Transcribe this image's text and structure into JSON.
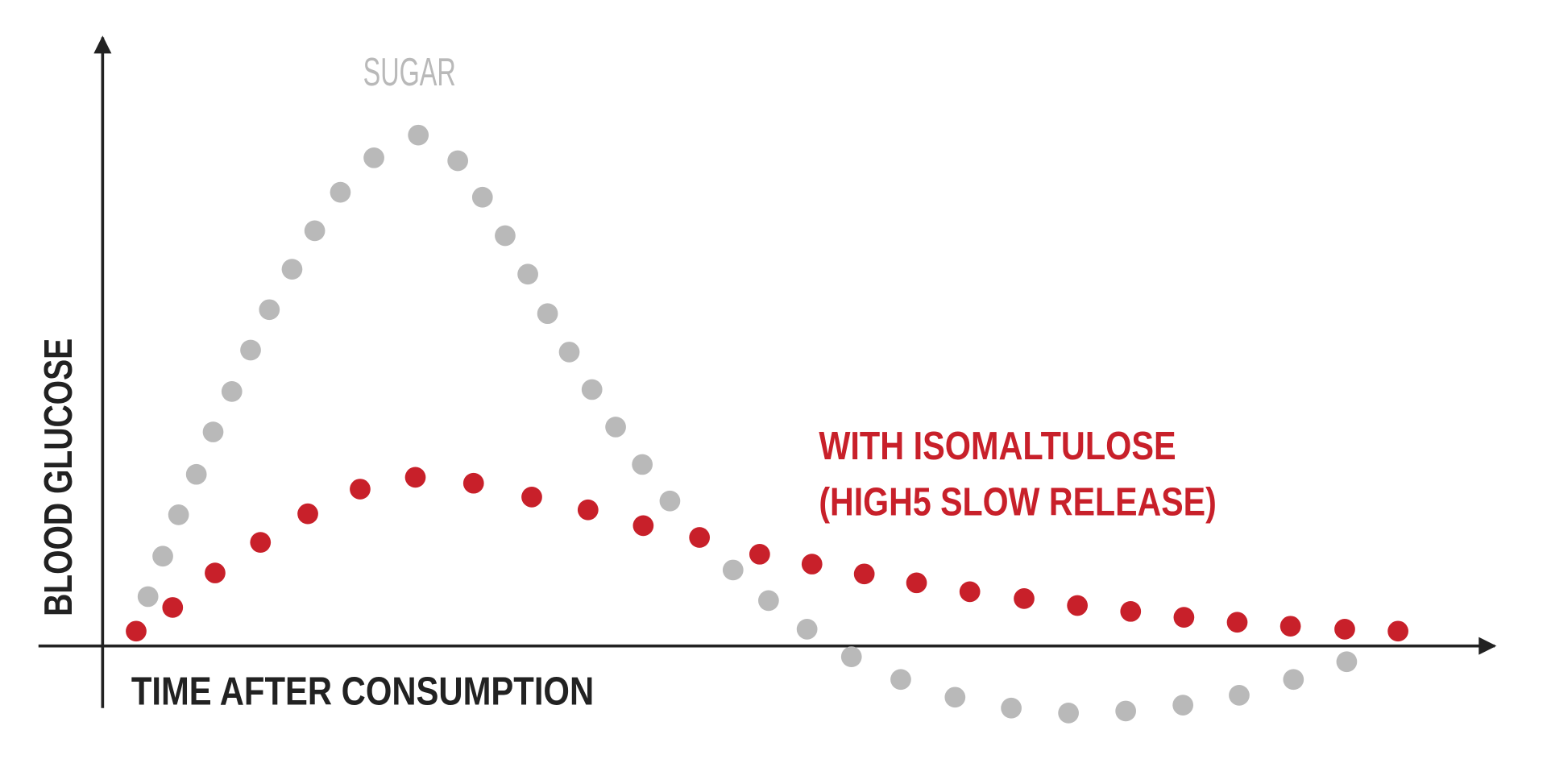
{
  "chart_data": {
    "type": "scatter",
    "x_label": "TIME AFTER CONSUMPTION",
    "y_label": "BLOOD GLUCOSE",
    "xlim": [
      -65,
      1411
    ],
    "ylim": [
      -75,
      617
    ],
    "series": [
      {
        "name": "SUGAR",
        "color": "#b9b9b9",
        "x": [
          46,
          61,
          77,
          95,
          112,
          131,
          150,
          169,
          192,
          215,
          241,
          275,
          320,
          360,
          385,
          408,
          431,
          451,
          473,
          496,
          520,
          547,
          575,
          639,
          675,
          714,
          759,
          809,
          864,
          921,
          979,
          1037,
          1095,
          1152,
          1207,
          1261
        ],
        "values": [
          50,
          91,
          133,
          174,
          217,
          258,
          300,
          341,
          382,
          421,
          460,
          495,
          518,
          492,
          455,
          416,
          377,
          337,
          298,
          260,
          222,
          184,
          147,
          77,
          46,
          17,
          -11,
          -34,
          -52,
          -63,
          -68,
          -66,
          -60,
          -50,
          -34,
          -16
        ]
      },
      {
        "name": [
          "WITH ISOMALTULOSE",
          "(HIGH5 SLOW RELEASE)"
        ],
        "color": "#c8202a",
        "x": [
          34,
          71,
          114,
          160,
          208,
          261,
          317,
          376,
          435,
          492,
          548,
          605,
          666,
          719,
          772,
          825,
          879,
          934,
          988,
          1042,
          1096,
          1150,
          1204,
          1259,
          1313
        ],
        "values": [
          15,
          39,
          74,
          105,
          134,
          159,
          171,
          165,
          151,
          138,
          122,
          110,
          93,
          83,
          73,
          64,
          55,
          48,
          41,
          35,
          29,
          24,
          20,
          17,
          15
        ]
      }
    ]
  }
}
